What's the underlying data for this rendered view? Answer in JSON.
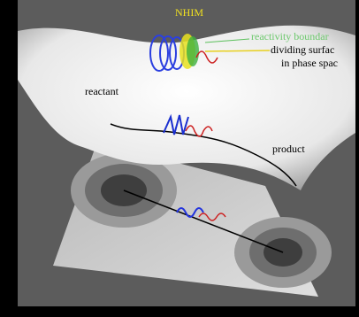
{
  "labels": {
    "nhim": "NHIM",
    "reactivity_boundary": "reactivity boundar",
    "dividing_surface": "dividing surfac",
    "phase_space": "in phase spac",
    "reactant": "reactant",
    "product": "product"
  }
}
